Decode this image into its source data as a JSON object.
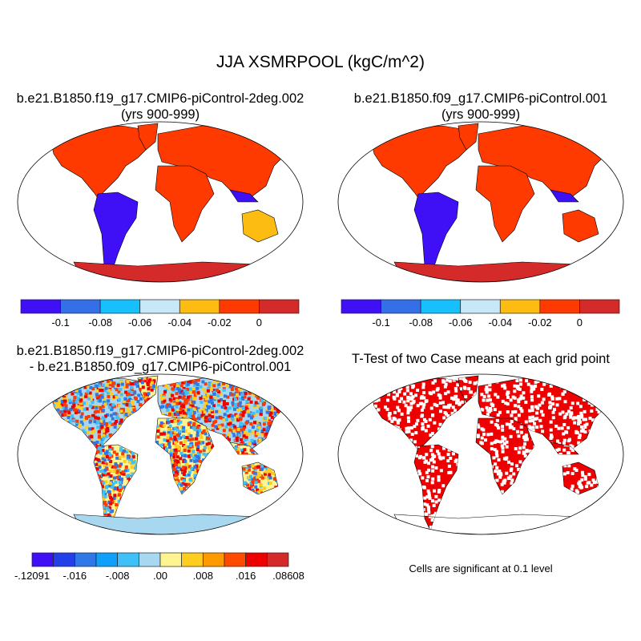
{
  "title": "JJA XSMRPOOL (kgC/m^2)",
  "panels": [
    {
      "title_line1": "b.e21.B1850.f19_g17.CMIP6-piControl-2deg.002",
      "title_line2": "(yrs 900-999)"
    },
    {
      "title_line1": "b.e21.B1850.f09_g17.CMIP6-piControl.001",
      "title_line2": "(yrs 900-999)"
    },
    {
      "title_line1": "b.e21.B1850.f19_g17.CMIP6-piControl-2deg.002",
      "title_line2": "- b.e21.B1850.f09_g17.CMIP6-piControl.001"
    },
    {
      "title_line1": "T-Test of two Case means at each grid point"
    }
  ],
  "colorbar_top": {
    "colors": [
      "#3f10f5",
      "#356fe8",
      "#15c0fc",
      "#c8e8f8",
      "#fdbc12",
      "#ff3a00",
      "#d42a2a"
    ],
    "labels": [
      "-0.1",
      "-0.08",
      "-0.06",
      "-0.04",
      "-0.02",
      "0"
    ]
  },
  "colorbar_diff": {
    "colors": [
      "#3f10f5",
      "#2340e8",
      "#3078e8",
      "#10a0fc",
      "#40c0f8",
      "#a8d8f0",
      "#fff590",
      "#ffcc20",
      "#ff9a00",
      "#ff4a00",
      "#ee0000",
      "#d42a2a"
    ],
    "labels": [
      "-.12091",
      "-.016",
      "-.008",
      ".00",
      ".008",
      ".016",
      ".08608"
    ]
  },
  "significance_note": "Cells are significant at 0.1 level"
}
